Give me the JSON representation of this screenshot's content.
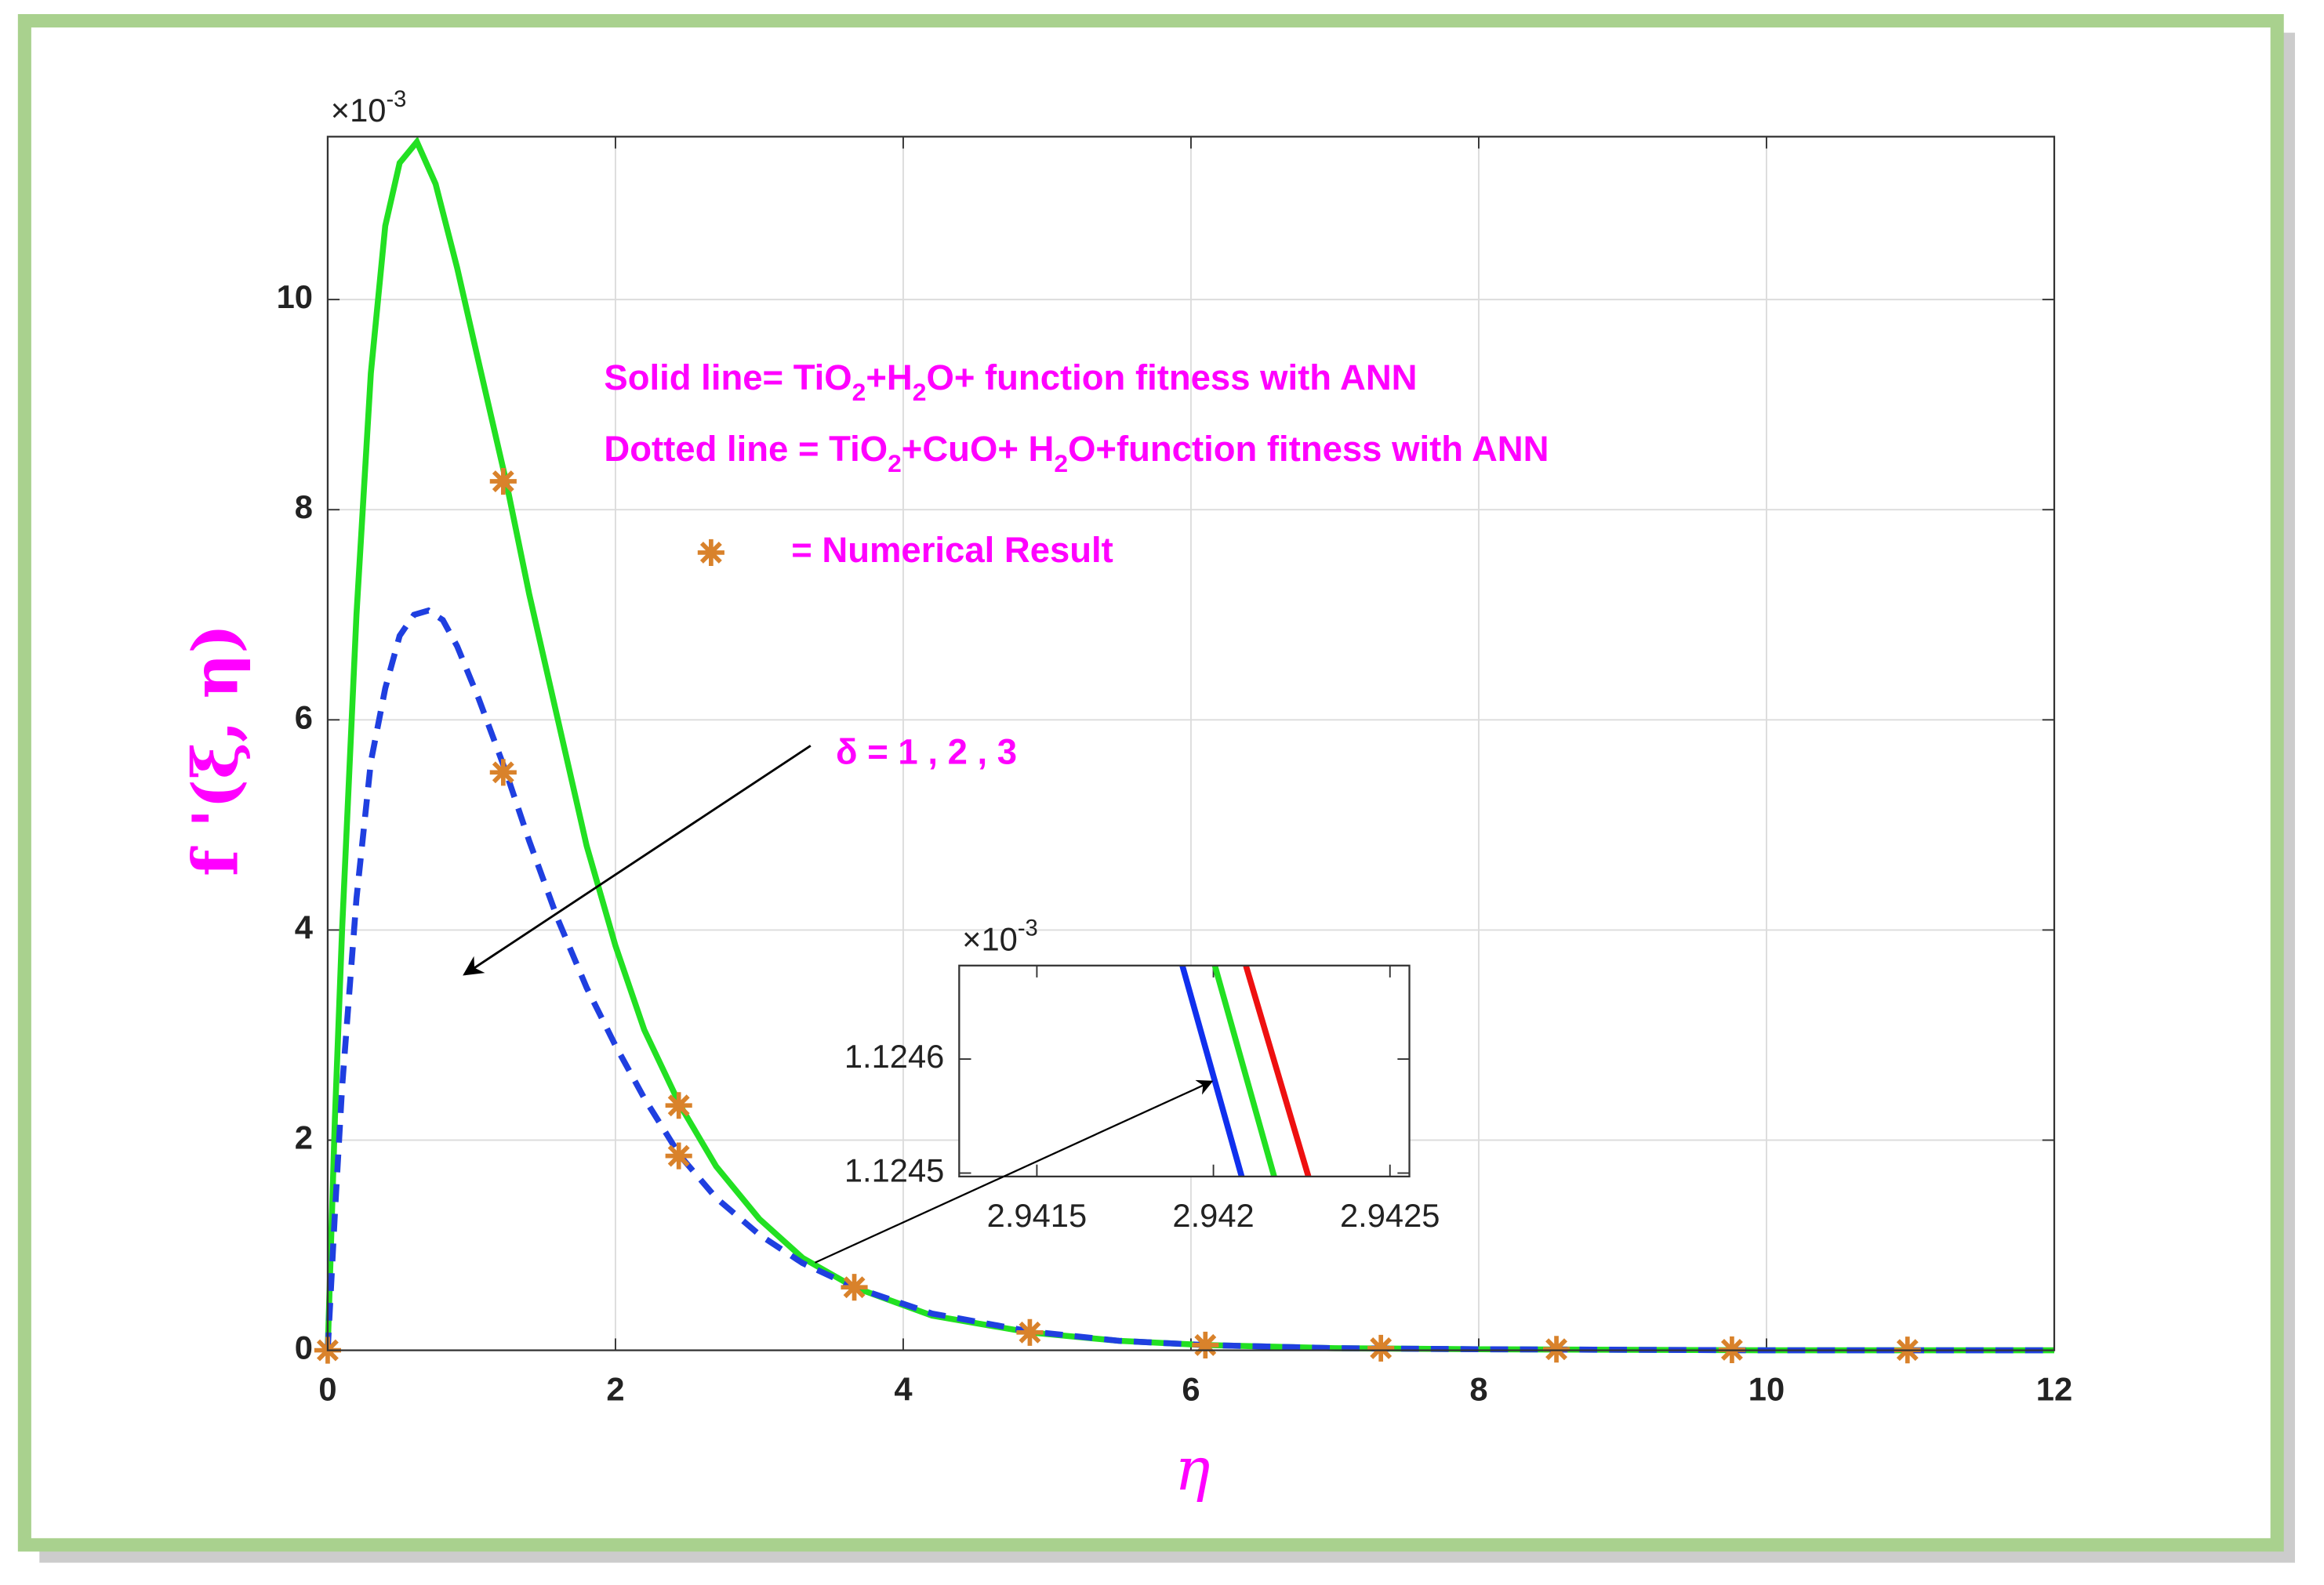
{
  "chart_data": [
    {
      "type": "line",
      "xlabel": "η",
      "ylabel": "f '(ξ, η)",
      "y_multiplier": [
        {
          "text": "×10"
        },
        {
          "sup": "-3"
        }
      ],
      "xlim": [
        0,
        12
      ],
      "ylim": [
        0,
        11.55
      ],
      "xticks": [
        0,
        2,
        4,
        6,
        8,
        10,
        12
      ],
      "yticks": [
        0,
        2,
        4,
        6,
        8,
        10
      ],
      "grid": true,
      "series": [
        {
          "color": "#22e022",
          "style": "solid",
          "x": [
            0,
            0.05,
            0.1,
            0.2,
            0.3,
            0.4,
            0.5,
            0.62,
            0.75,
            0.9,
            1.05,
            1.24,
            1.4,
            1.6,
            1.8,
            2.0,
            2.2,
            2.45,
            2.7,
            3.0,
            3.3,
            3.66,
            4.2,
            4.88,
            5.5,
            6.1,
            7.0,
            8.0,
            10.0,
            12.0
          ],
          "values": [
            0,
            2.2,
            4.0,
            7.0,
            9.3,
            10.7,
            11.3,
            11.5,
            11.1,
            10.3,
            9.4,
            8.27,
            7.2,
            6.0,
            4.8,
            3.85,
            3.05,
            2.33,
            1.75,
            1.25,
            0.88,
            0.6,
            0.33,
            0.17,
            0.09,
            0.05,
            0.02,
            0.01,
            0,
            0
          ]
        },
        {
          "color": "#1f3fe0",
          "style": "dashed",
          "x": [
            0,
            0.05,
            0.1,
            0.2,
            0.3,
            0.4,
            0.5,
            0.6,
            0.7,
            0.8,
            0.9,
            1.05,
            1.24,
            1.4,
            1.6,
            1.8,
            2.0,
            2.2,
            2.45,
            2.7,
            3.0,
            3.3,
            3.66,
            4.2,
            4.88,
            5.5,
            6.1,
            7.0,
            8.0,
            10.0,
            12.0
          ],
          "values": [
            0,
            1.3,
            2.5,
            4.3,
            5.6,
            6.3,
            6.8,
            7.0,
            7.04,
            6.95,
            6.7,
            6.2,
            5.5,
            4.85,
            4.1,
            3.45,
            2.9,
            2.4,
            1.85,
            1.45,
            1.1,
            0.83,
            0.6,
            0.35,
            0.18,
            0.09,
            0.05,
            0.02,
            0.01,
            0,
            0
          ]
        },
        {
          "color": "#d9822b",
          "style": "marker",
          "x": [
            0,
            1.22,
            1.22,
            2.44,
            2.44,
            3.66,
            4.88,
            6.1,
            7.32,
            8.54,
            9.76,
            10.98
          ],
          "values": [
            0,
            8.27,
            5.5,
            2.33,
            1.85,
            0.6,
            0.17,
            0.05,
            0.02,
            0.01,
            0.005,
            0.003
          ]
        }
      ],
      "annotations": [
        [
          {
            "text": "Solid line= TiO"
          },
          {
            "sub": "2"
          },
          {
            "text": "+H"
          },
          {
            "sub": "2"
          },
          {
            "text": "O+ function fitness with ANN"
          }
        ],
        [
          {
            "text": "Dotted line = TiO"
          },
          {
            "sub": "2"
          },
          {
            "text": "+CuO+ H"
          },
          {
            "sub": "2"
          },
          {
            "text": "O+function fitness with ANN"
          }
        ],
        [
          {
            "text": "=  Numerical Result"
          }
        ],
        [
          {
            "text": "δ = 1 , 2 , 3"
          }
        ]
      ]
    },
    {
      "type": "line",
      "y_multiplier": [
        {
          "text": "×10"
        },
        {
          "sup": "-3"
        }
      ],
      "xlim": [
        2.94128,
        2.942555
      ],
      "ylim": [
        1.124497,
        1.124682
      ],
      "xticks": [
        2.9415,
        2.942,
        2.9425
      ],
      "yticks": [
        1.1245,
        1.1246
      ],
      "grid": false,
      "series": [
        {
          "color": "#1030ee",
          "style": "solid",
          "x": [
            2.941912,
            2.94208
          ],
          "values": [
            1.124682,
            1.124497
          ]
        },
        {
          "color": "#22e022",
          "style": "solid",
          "x": [
            2.942004,
            2.942172
          ],
          "values": [
            1.124682,
            1.124497
          ]
        },
        {
          "color": "#ee1010",
          "style": "solid",
          "x": [
            2.942092,
            2.942269
          ],
          "values": [
            1.124682,
            1.124497
          ]
        }
      ]
    }
  ]
}
